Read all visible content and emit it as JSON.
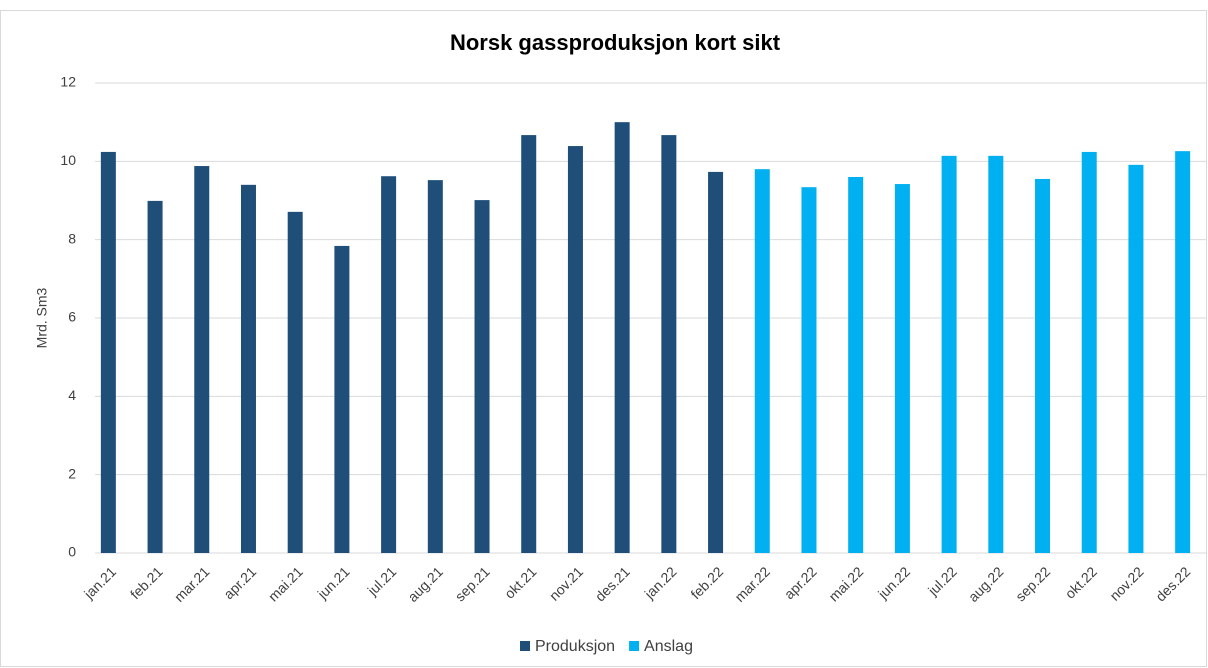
{
  "chart_data": {
    "type": "bar",
    "title": "Norsk gassproduksjon kort sikt",
    "y_label": "Mrd. Sm3",
    "categories": [
      "jan.21",
      "feb.21",
      "mar.21",
      "apr.21",
      "mai.21",
      "jun.21",
      "jul.21",
      "aug.21",
      "sep.21",
      "okt.21",
      "nov.21",
      "des.21",
      "jan.22",
      "feb.22",
      "mar.22",
      "apr.22",
      "mai.22",
      "jun.22",
      "jul.22",
      "aug.22",
      "sep.22",
      "okt.22",
      "nov.22",
      "des.22"
    ],
    "series": [
      {
        "name": "Produksjon",
        "color": "#1f4e79",
        "values": [
          10.24,
          8.99,
          9.88,
          9.4,
          8.71,
          7.84,
          9.62,
          9.52,
          9.01,
          10.67,
          10.39,
          11.0,
          10.67,
          9.73,
          null,
          null,
          null,
          null,
          null,
          null,
          null,
          null,
          null,
          null
        ]
      },
      {
        "name": "Anslag",
        "color": "#00b0f0",
        "values": [
          null,
          null,
          null,
          null,
          null,
          null,
          null,
          null,
          null,
          null,
          null,
          null,
          null,
          null,
          9.8,
          9.34,
          9.6,
          9.42,
          10.14,
          10.14,
          9.55,
          10.24,
          9.91,
          10.26
        ]
      }
    ],
    "ylim": [
      0,
      12
    ],
    "yticks": [
      0,
      2,
      4,
      6,
      8,
      10,
      12
    ],
    "grid": true
  }
}
